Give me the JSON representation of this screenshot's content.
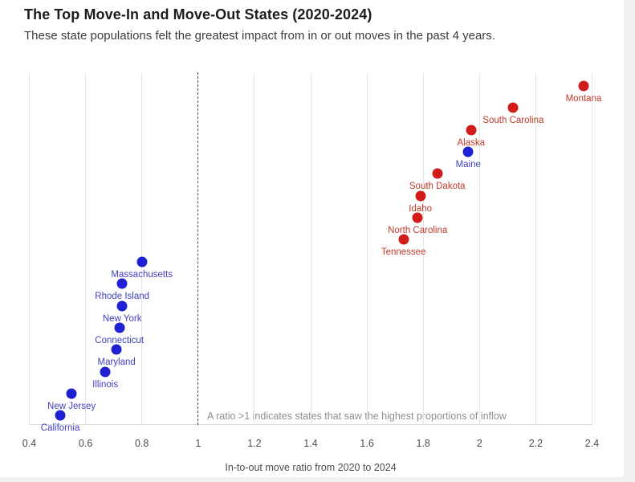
{
  "page": {
    "title": "The Top Move-In and Move-Out States (2020-2024)",
    "subtitle": "These state populations felt the greatest impact from in or out moves in the past 4 years."
  },
  "chart_data": {
    "type": "scatter",
    "title": "The Top Move-In and Move-Out States (2020-2024)",
    "subtitle": "These state populations felt the greatest impact from in or out moves in the past 4 years.",
    "xlabel": "In-to-out move ratio from 2020 to 2024",
    "ylabel": "",
    "xlim": [
      0.4,
      2.4
    ],
    "x_tick_values": [
      0.4,
      0.6,
      0.8,
      1,
      1.2,
      1.4,
      1.6,
      1.8,
      2,
      2.2,
      2.4
    ],
    "x_tick_labels": [
      "0.4",
      "0.6",
      "0.8",
      "1",
      "1.2",
      "1.4",
      "1.6",
      "1.8",
      "2",
      "2.2",
      "2.4"
    ],
    "grid": "vertical-only",
    "legend": "none",
    "reference_line": {
      "x": 1,
      "style": "dashed"
    },
    "annotation": {
      "text": "A ratio >1 indicates states that saw the highest proportions of inflow"
    },
    "colors": {
      "red": {
        "dot": "#d11c1c",
        "label": "#c03a2b"
      },
      "blue": {
        "dot": "#1e20d2",
        "label": "#4141c1"
      }
    },
    "points": [
      {
        "rank": 1,
        "state": "Montana",
        "ratio": 2.37,
        "color": "red"
      },
      {
        "rank": 2,
        "state": "South Carolina",
        "ratio": 2.12,
        "color": "red"
      },
      {
        "rank": 3,
        "state": "Alaska",
        "ratio": 1.97,
        "color": "red"
      },
      {
        "rank": 4,
        "state": "Maine",
        "ratio": 1.96,
        "color": "blue"
      },
      {
        "rank": 5,
        "state": "South Dakota",
        "ratio": 1.85,
        "color": "red"
      },
      {
        "rank": 6,
        "state": "Idaho",
        "ratio": 1.79,
        "color": "red"
      },
      {
        "rank": 7,
        "state": "North Carolina",
        "ratio": 1.78,
        "color": "red"
      },
      {
        "rank": 8,
        "state": "Tennessee",
        "ratio": 1.73,
        "color": "red"
      },
      {
        "rank": 9,
        "state": "Massachusetts",
        "ratio": 0.8,
        "color": "blue"
      },
      {
        "rank": 10,
        "state": "Rhode Island",
        "ratio": 0.73,
        "color": "blue"
      },
      {
        "rank": 11,
        "state": "New York",
        "ratio": 0.73,
        "color": "blue"
      },
      {
        "rank": 12,
        "state": "Connecticut",
        "ratio": 0.72,
        "color": "blue"
      },
      {
        "rank": 13,
        "state": "Maryland",
        "ratio": 0.71,
        "color": "blue"
      },
      {
        "rank": 14,
        "state": "Illinois",
        "ratio": 0.67,
        "color": "blue"
      },
      {
        "rank": 15,
        "state": "New Jersey",
        "ratio": 0.55,
        "color": "blue"
      },
      {
        "rank": 16,
        "state": "California",
        "ratio": 0.51,
        "color": "blue"
      }
    ]
  }
}
